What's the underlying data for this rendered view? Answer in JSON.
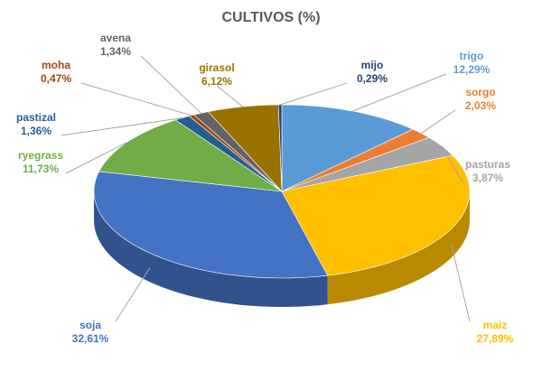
{
  "chart_data": {
    "type": "pie",
    "title": "CULTIVOS (%)",
    "categories": [
      "trigo",
      "sorgo",
      "pasturas",
      "maiz",
      "soja",
      "ryegrass",
      "pastizal",
      "moha",
      "avena",
      "girasol",
      "mijo"
    ],
    "values": [
      12.29,
      2.03,
      3.87,
      27.89,
      32.61,
      11.73,
      1.36,
      0.47,
      1.34,
      6.12,
      0.29
    ],
    "value_labels": [
      "12,29%",
      "2,03%",
      "3,87%",
      "27,89%",
      "32,61%",
      "11,73%",
      "1,36%",
      "0,47%",
      "1,34%",
      "6,12%",
      "0,29%"
    ],
    "colors": [
      "#5b9bd5",
      "#ed7d31",
      "#a5a5a5",
      "#ffc000",
      "#4472c4",
      "#70ad47",
      "#255e91",
      "#9e480e",
      "#636363",
      "#997300",
      "#264478"
    ]
  }
}
